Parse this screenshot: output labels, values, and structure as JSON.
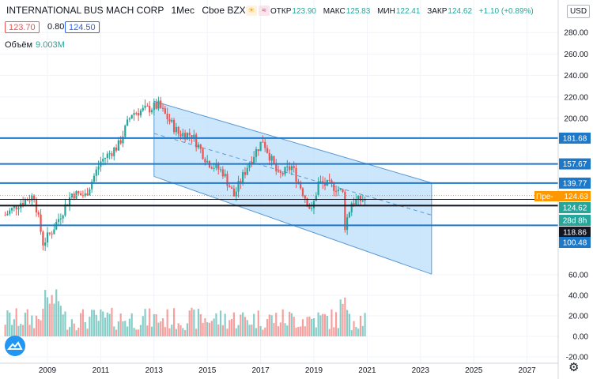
{
  "header": {
    "symbol": "INTERNATIONAL BUS MACH CORP",
    "interval": "1Мес",
    "exchange": "Cboe BZX",
    "ohlc": {
      "open_label": "ОТКР",
      "open": "123.90",
      "high_label": "МАКС",
      "high": "125.83",
      "low_label": "МИН",
      "low": "122.41",
      "close_label": "ЗАКР",
      "close": "124.62",
      "change": "+1.10 (+0.89%)"
    }
  },
  "trade": {
    "sell": "123.70",
    "spread": "0.80",
    "buy": "124.50"
  },
  "volume": {
    "label": "Объём",
    "value": "9.003M"
  },
  "currency": "USD",
  "icons": {
    "settings": "gear-icon",
    "logo": "tradingview-logo-icon",
    "badge1": "sun-icon",
    "badge2": "wave-icon"
  },
  "colors": {
    "up": "#26a69a",
    "down": "#ef5350",
    "hline": "#1e78c8",
    "channel_fill": "#bbdefb",
    "channel_line": "#5b9bd5"
  },
  "price_scale": {
    "ticks": [
      "280.00",
      "260.00",
      "240.00",
      "220.00",
      "200.00",
      "181.68",
      "157.67",
      "139.77",
      "124.62",
      "118.86",
      "100.48",
      "60.00",
      "40.00",
      "20.00",
      "0.00",
      "-20.00"
    ],
    "labels": [
      {
        "text": "181.68",
        "kind": "line"
      },
      {
        "text": "157.67",
        "kind": "line"
      },
      {
        "text": "139.77",
        "kind": "line"
      },
      {
        "text": "Пре-",
        "kind": "pre"
      },
      {
        "text": "124.63",
        "kind": "pre"
      },
      {
        "text": "124.62",
        "kind": "last"
      },
      {
        "text": "28d 8h",
        "kind": "countdown"
      },
      {
        "text": "118.86",
        "kind": "black"
      },
      {
        "text": "100.48",
        "kind": "line"
      }
    ]
  },
  "time_scale": {
    "ticks": [
      "2009",
      "2011",
      "2013",
      "2015",
      "2017",
      "2019",
      "2021",
      "2023",
      "2025",
      "2027"
    ]
  },
  "chart_data": {
    "type": "candlestick",
    "price_ylim": [
      60,
      295
    ],
    "volume_axis_ticks": [
      60,
      40,
      20,
      0,
      -20
    ],
    "horizontal_levels": [
      181.68,
      157.67,
      139.77,
      124.62,
      118.86,
      100.48
    ],
    "channel": {
      "upper": [
        {
          "x": "2013-01",
          "y": 216
        },
        {
          "x": "2023-06",
          "y": 140
        }
      ],
      "middle": [
        {
          "x": "2013-01",
          "y": 186
        },
        {
          "x": "2023-06",
          "y": 110
        }
      ],
      "lower": [
        {
          "x": "2013-01",
          "y": 146
        },
        {
          "x": "2023-06",
          "y": 55
        }
      ]
    },
    "anchors": [
      {
        "x": "2007-06",
        "y": 110
      },
      {
        "x": "2008-01",
        "y": 122
      },
      {
        "x": "2008-07",
        "y": 128
      },
      {
        "x": "2008-11",
        "y": 84
      },
      {
        "x": "2009-03",
        "y": 95
      },
      {
        "x": "2009-12",
        "y": 130
      },
      {
        "x": "2010-06",
        "y": 128
      },
      {
        "x": "2011-01",
        "y": 160
      },
      {
        "x": "2011-09",
        "y": 175
      },
      {
        "x": "2012-03",
        "y": 205
      },
      {
        "x": "2012-09",
        "y": 208
      },
      {
        "x": "2013-03",
        "y": 212
      },
      {
        "x": "2013-12",
        "y": 186
      },
      {
        "x": "2014-06",
        "y": 185
      },
      {
        "x": "2015-01",
        "y": 160
      },
      {
        "x": "2015-08",
        "y": 150
      },
      {
        "x": "2016-01",
        "y": 128
      },
      {
        "x": "2016-08",
        "y": 160
      },
      {
        "x": "2017-02",
        "y": 180
      },
      {
        "x": "2017-09",
        "y": 146
      },
      {
        "x": "2018-03",
        "y": 155
      },
      {
        "x": "2018-12",
        "y": 113
      },
      {
        "x": "2019-03",
        "y": 140
      },
      {
        "x": "2019-11",
        "y": 136
      },
      {
        "x": "2020-02",
        "y": 130
      },
      {
        "x": "2020-03",
        "y": 100
      },
      {
        "x": "2020-06",
        "y": 122
      },
      {
        "x": "2020-12",
        "y": 124.6
      }
    ]
  }
}
